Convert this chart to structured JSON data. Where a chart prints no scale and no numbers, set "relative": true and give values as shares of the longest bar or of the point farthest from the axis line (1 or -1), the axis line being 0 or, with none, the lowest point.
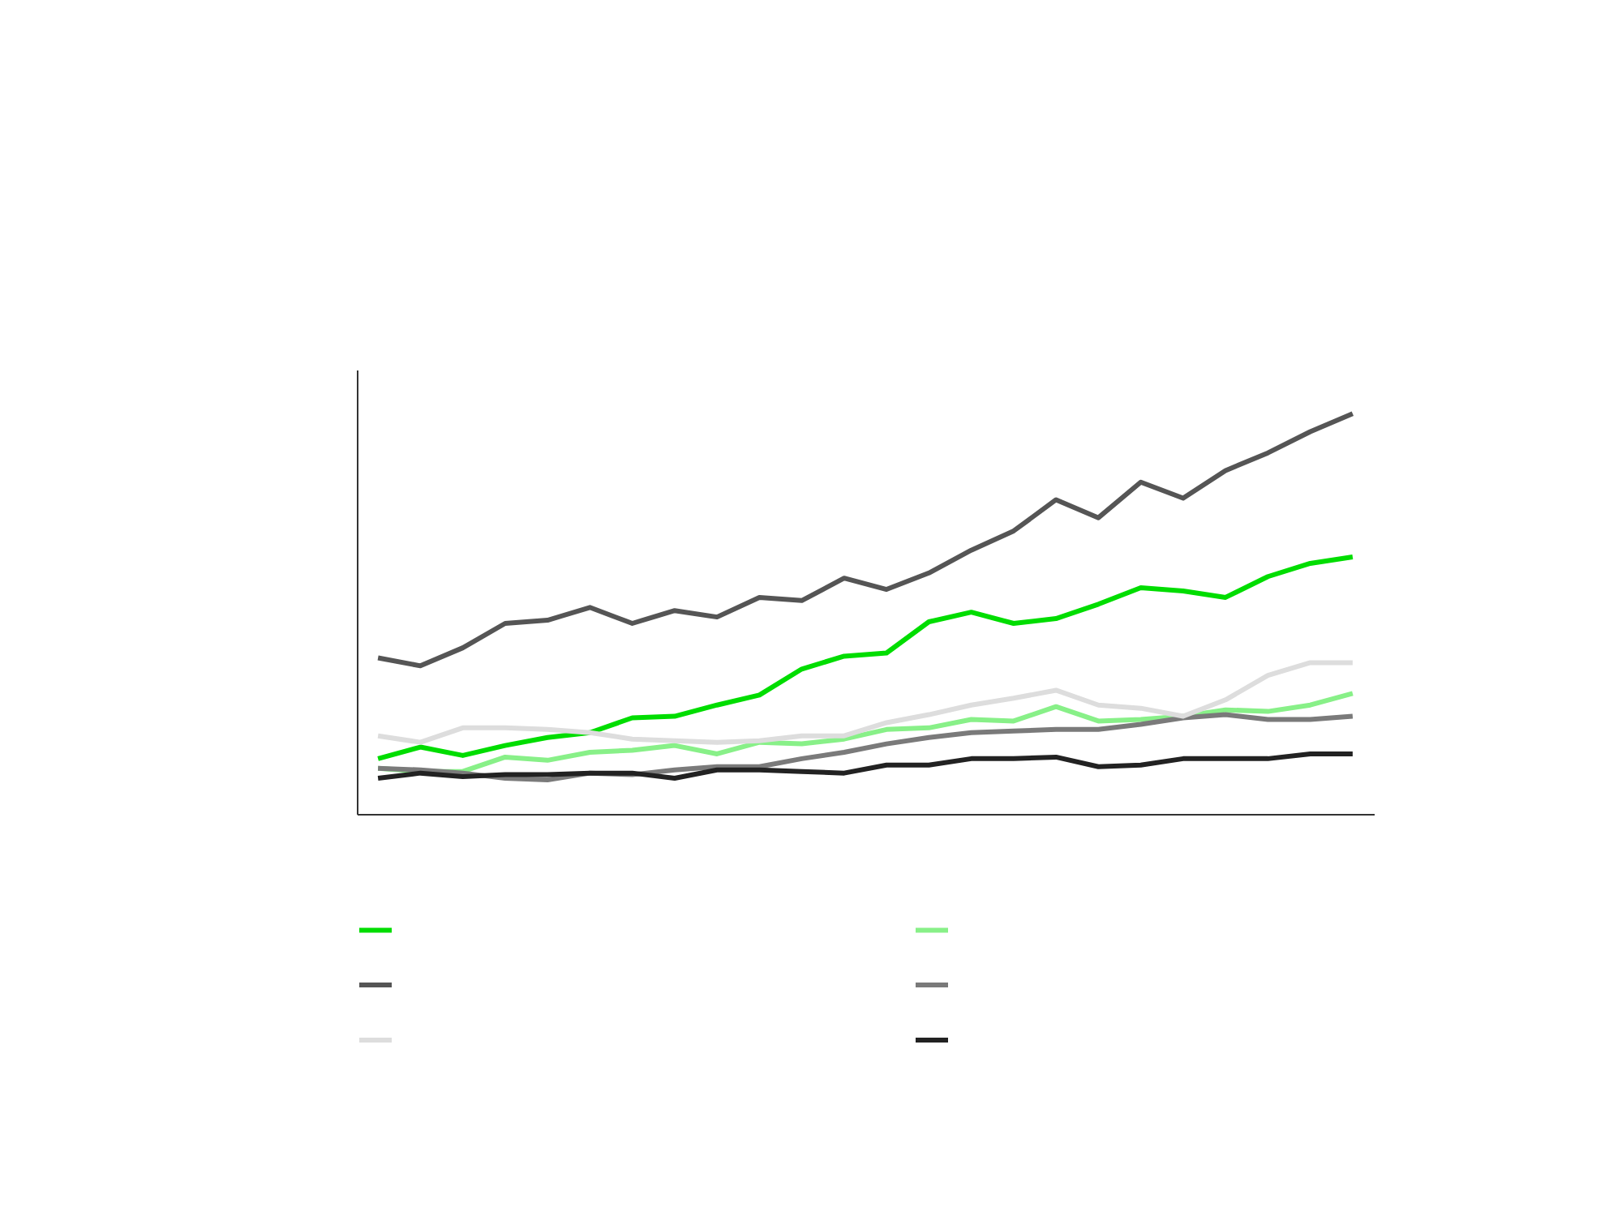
{
  "chart_data": {
    "type": "line",
    "relative": true,
    "grid": false,
    "marker": "none",
    "line_style": "solid",
    "categories": [
      null,
      null,
      null,
      null,
      null,
      null,
      null,
      null,
      null,
      null,
      null,
      null,
      null,
      null,
      null,
      null,
      null,
      null,
      null,
      null,
      null,
      null,
      null,
      null
    ],
    "series": [
      {
        "color": "#00dd00",
        "values": [
          0.138,
          0.167,
          0.146,
          0.171,
          0.191,
          0.203,
          0.24,
          0.244,
          0.272,
          0.297,
          0.362,
          0.394,
          0.402,
          0.48,
          0.504,
          0.476,
          0.488,
          0.524,
          0.565,
          0.557,
          0.541,
          0.593,
          0.626,
          0.642
        ]
      },
      {
        "color": "#88f088",
        "values": [
          0.114,
          0.106,
          0.106,
          0.142,
          0.134,
          0.154,
          0.159,
          0.171,
          0.15,
          0.179,
          0.175,
          0.187,
          0.211,
          0.215,
          0.236,
          0.232,
          0.268,
          0.232,
          0.236,
          0.244,
          0.26,
          0.256,
          0.272,
          0.301
        ]
      },
      {
        "color": "#555555",
        "values": [
          0.39,
          0.37,
          0.415,
          0.476,
          0.484,
          0.516,
          0.476,
          0.508,
          0.492,
          0.541,
          0.533,
          0.589,
          0.561,
          0.602,
          0.659,
          0.707,
          0.785,
          0.74,
          0.829,
          0.789,
          0.858,
          0.902,
          0.955,
          1
        ]
      },
      {
        "color": "#7a7a7a",
        "values": [
          0.114,
          0.11,
          0.102,
          0.089,
          0.085,
          0.102,
          0.098,
          0.11,
          0.118,
          0.118,
          0.138,
          0.154,
          0.175,
          0.191,
          0.203,
          0.207,
          0.211,
          0.211,
          0.224,
          0.24,
          0.248,
          0.236,
          0.236,
          0.244
        ]
      },
      {
        "color": "#dddddd",
        "values": [
          0.195,
          0.179,
          0.215,
          0.215,
          0.211,
          0.203,
          0.187,
          0.183,
          0.179,
          0.183,
          0.195,
          0.195,
          0.228,
          0.248,
          0.272,
          0.289,
          0.309,
          0.272,
          0.264,
          0.244,
          0.285,
          0.346,
          0.378,
          0.378
        ]
      },
      {
        "color": "#222222",
        "values": [
          0.089,
          0.102,
          0.093,
          0.098,
          0.098,
          0.102,
          0.102,
          0.089,
          0.11,
          0.11,
          0.106,
          0.102,
          0.122,
          0.122,
          0.138,
          0.138,
          0.142,
          0.118,
          0.122,
          0.138,
          0.138,
          0.138,
          0.15,
          0.15
        ]
      }
    ]
  }
}
